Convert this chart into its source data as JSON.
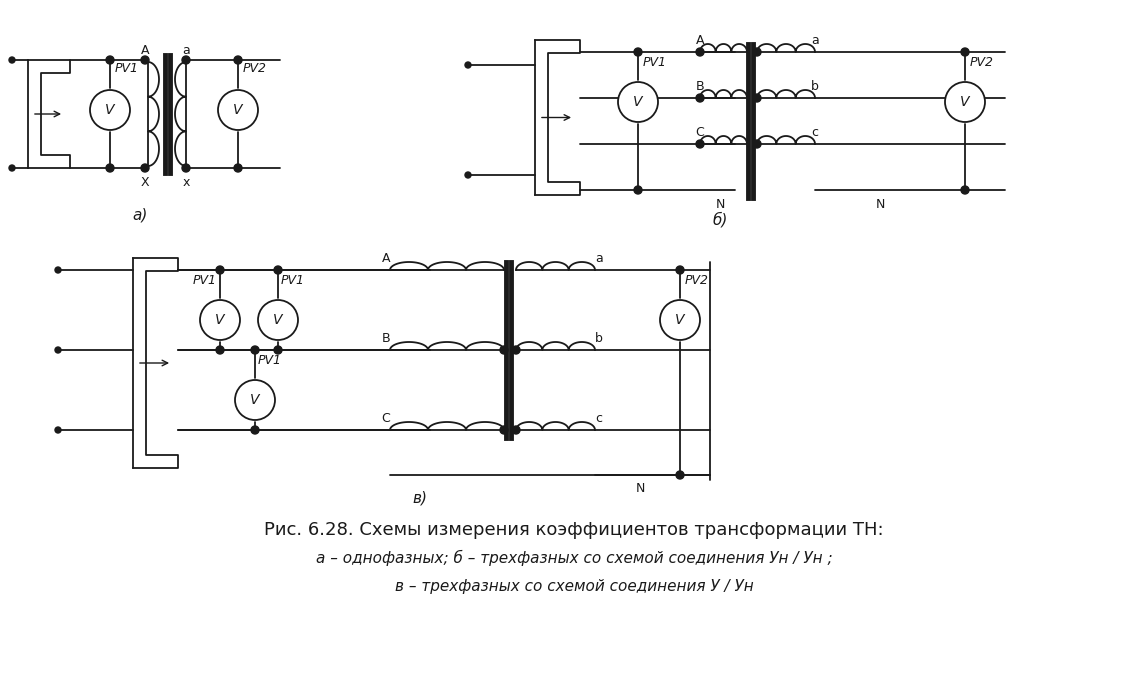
{
  "title_line1": "Рис. 6.28. Схемы измерения коэффициентов трансформации ТН:",
  "title_line2": "а – однофазных; б – трехфазных со схемой соединения Ун / Ун ;",
  "title_line3": "в – трехфазных со схемой соединения У / Ун",
  "bg_color": "#ffffff",
  "line_color": "#1a1a1a"
}
